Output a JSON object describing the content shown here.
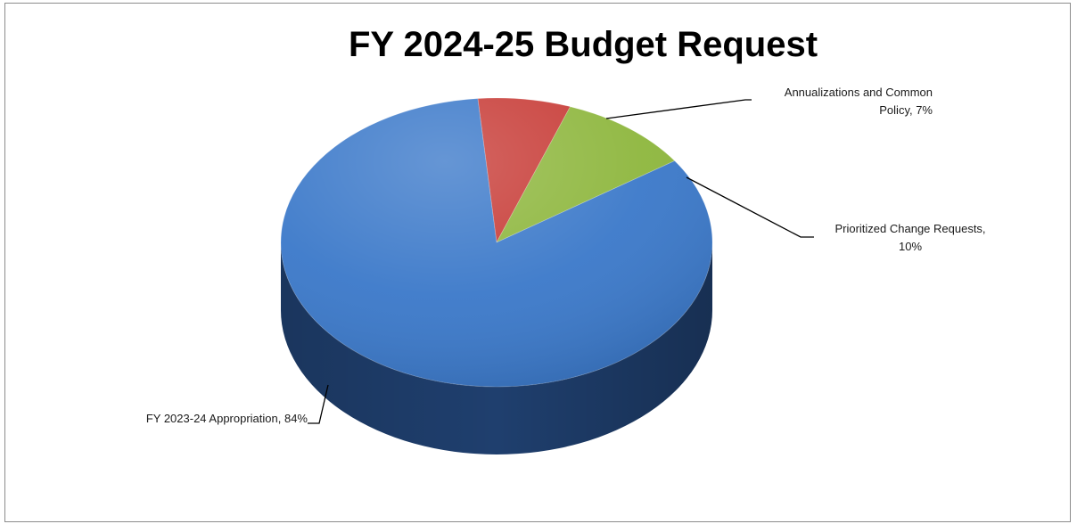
{
  "chart_data": {
    "type": "pie",
    "title": "FY 2024-25 Budget Request",
    "slices": [
      {
        "label": "FY 2023-24 Appropriation",
        "value": 84,
        "label_lines": [
          "FY 2023-24 Appropriation, 84%"
        ],
        "color": "#3a78c9",
        "side_color": "#1f3f6e"
      },
      {
        "label": "Annualizations and Common Policy",
        "value": 7,
        "label_lines": [
          "Annualizations and Common",
          "Policy, 7%"
        ],
        "color": "#c73a35",
        "side_color": "#7a1f1c"
      },
      {
        "label": "Prioritized Change Requests",
        "value": 10,
        "label_lines": [
          "Prioritized Change Requests,",
          "10%"
        ],
        "color": "#8db63c",
        "side_color": "#55701f"
      }
    ],
    "legend": "none",
    "style": "3d"
  }
}
